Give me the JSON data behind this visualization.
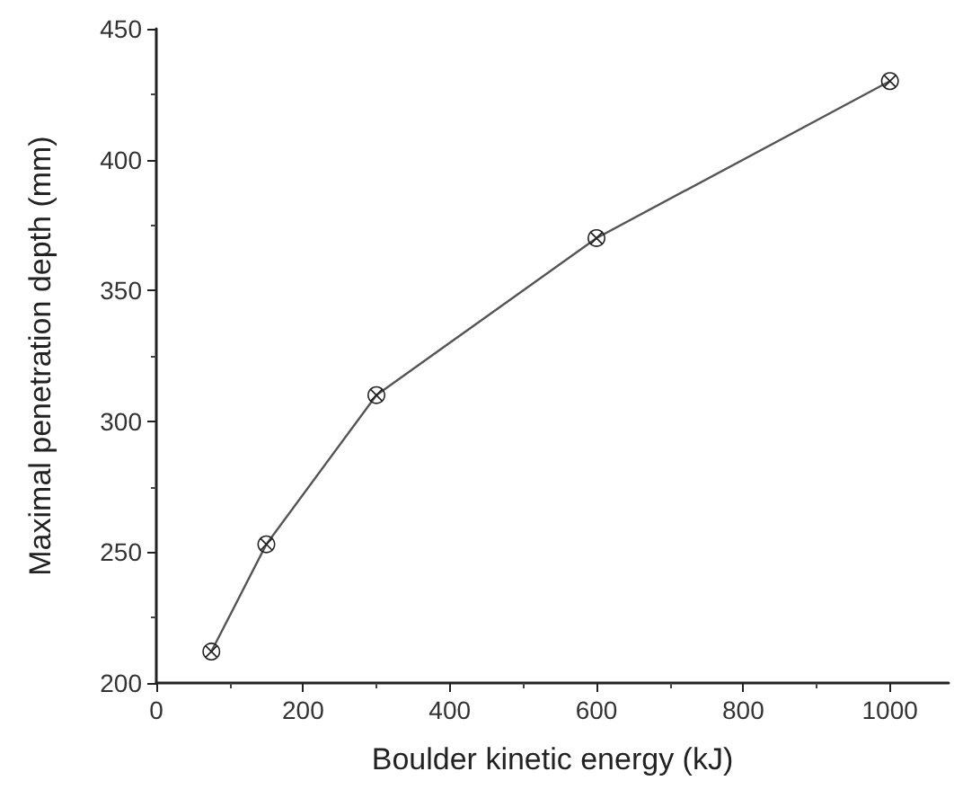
{
  "chart_data": {
    "type": "line",
    "xlabel": "Boulder kinetic energy (kJ)",
    "ylabel": "Maximal penetration depth (mm)",
    "x": [
      75,
      150,
      300,
      600,
      1000
    ],
    "values": [
      212,
      253,
      310,
      370,
      430
    ],
    "color": "#555555",
    "xlim": [
      0,
      1080
    ],
    "xticks": [
      0,
      200,
      400,
      600,
      800,
      1000
    ],
    "ylim": [
      200,
      450
    ],
    "yticks": [
      200,
      250,
      300,
      350,
      400,
      450
    ],
    "grid": false,
    "marker": "cross",
    "line_style": "solid"
  }
}
